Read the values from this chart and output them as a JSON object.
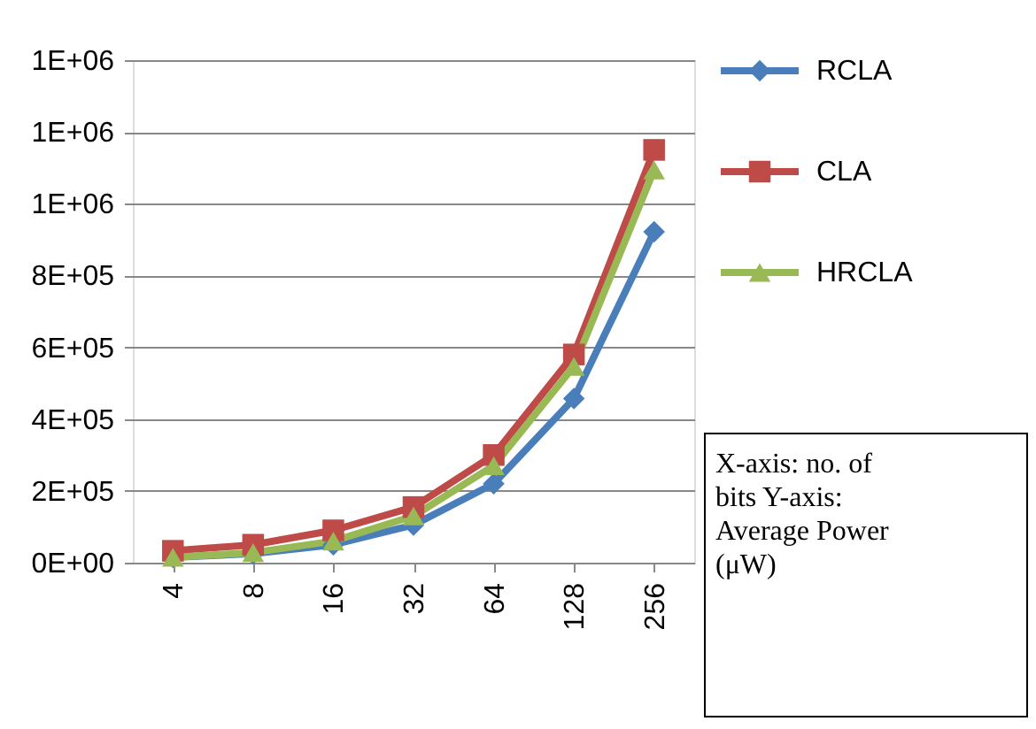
{
  "chart_data": {
    "type": "line",
    "categories": [
      "4",
      "8",
      "16",
      "32",
      "64",
      "128",
      "256"
    ],
    "series": [
      {
        "name": "RCLA",
        "color": "#4a7ebb",
        "marker": "diamond",
        "values": [
          15000,
          25000,
          50000,
          105000,
          220000,
          457000,
          922000
        ]
      },
      {
        "name": "CLA",
        "color": "#be4b48",
        "marker": "square",
        "values": [
          33000,
          50000,
          90000,
          155000,
          300000,
          580000,
          1150000
        ]
      },
      {
        "name": "HRCLA",
        "color": "#98b954",
        "marker": "triangle",
        "values": [
          15000,
          28000,
          60000,
          130000,
          270000,
          547000,
          1094000
        ]
      }
    ],
    "ylim": [
      0,
      1400000
    ],
    "yticks": [
      {
        "value": 0,
        "label": "0E+00"
      },
      {
        "value": 200000,
        "label": "2E+05"
      },
      {
        "value": 400000,
        "label": "4E+05"
      },
      {
        "value": 600000,
        "label": "6E+05"
      },
      {
        "value": 800000,
        "label": "8E+05"
      },
      {
        "value": 1000000,
        "label": "1E+06"
      },
      {
        "value": 1200000,
        "label": "1E+06"
      },
      {
        "value": 1400000,
        "label": "1E+06"
      }
    ],
    "grid": "y",
    "legend": "right",
    "line_style": "solid",
    "annotations": [
      "X-axis: no. of bits Y-axis: Average Power (μW)"
    ]
  }
}
